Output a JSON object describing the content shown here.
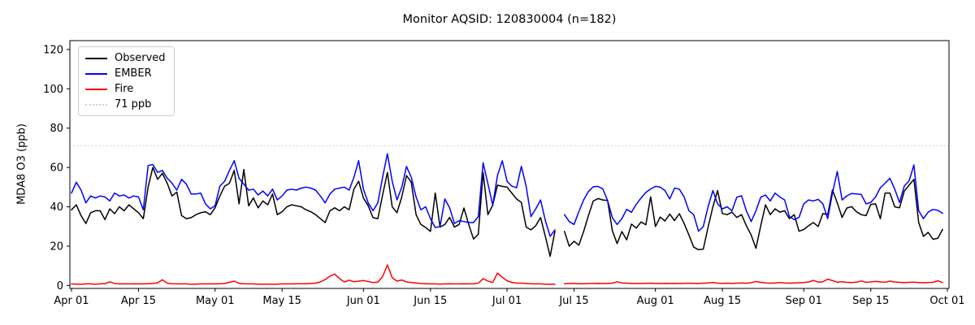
{
  "chart_data": {
    "type": "line",
    "title": "Monitor AQSID: 120830004 (n=182)",
    "xlabel": "",
    "ylabel": "MDA8 O3 (ppb)",
    "ylim": [
      -1.5,
      124.5
    ],
    "y_ticks": [
      0,
      20,
      40,
      60,
      80,
      100,
      120
    ],
    "n_days": 183,
    "x_tick_labels": [
      "Apr 01",
      "Apr 15",
      "May 01",
      "May 15",
      "Jun 01",
      "Jun 15",
      "Jul 01",
      "Jul 15",
      "Aug 01",
      "Aug 15",
      "Sep 01",
      "Sep 15",
      "Oct 01"
    ],
    "x_tick_day_index": [
      0,
      14,
      30,
      44,
      61,
      75,
      91,
      105,
      122,
      136,
      153,
      167,
      183
    ],
    "grid": false,
    "legend_position": "upper left",
    "missing_day_index": 102,
    "threshold": {
      "value": 71,
      "label": "71 ppb",
      "color": "#d3d3d3",
      "style": "dotted"
    },
    "series": [
      {
        "name": "Observed",
        "color": "#000000",
        "values": [
          38.5,
          41,
          35.5,
          31.5,
          37,
          38,
          38,
          33.5,
          39,
          36.5,
          40,
          38,
          41,
          39,
          37,
          34,
          50,
          60,
          54,
          57,
          52,
          45.5,
          47.5,
          35.5,
          34,
          34.5,
          36,
          37,
          37.5,
          36,
          39.5,
          45.5,
          50.5,
          52,
          58.5,
          41.5,
          59,
          40.5,
          44.5,
          39.5,
          43,
          41,
          46.5,
          36,
          37.5,
          40,
          41,
          40.5,
          40,
          38.5,
          37.5,
          36,
          34,
          32,
          38,
          39.5,
          38,
          40,
          38.5,
          49,
          53,
          44.5,
          40.5,
          34.5,
          34,
          46,
          57.5,
          40,
          37,
          45,
          55.9,
          52.5,
          36,
          31,
          29.5,
          27.5,
          47,
          29.7,
          31,
          34.6,
          29.7,
          31,
          39.4,
          31,
          23.6,
          26,
          57.5,
          36,
          40.8,
          51,
          50.4,
          50,
          47,
          44,
          42.2,
          29.7,
          28.3,
          30.4,
          34.6,
          25,
          14.8,
          27.6,
          null,
          27.5,
          20,
          22.5,
          20.5,
          27.4,
          35.5,
          42.9,
          44.2,
          43.5,
          43.2,
          27.8,
          21.3,
          27.4,
          23.2,
          31.2,
          29.2,
          32.3,
          30.9,
          45.1,
          30,
          34.8,
          32.8,
          36.3,
          33,
          36.5,
          31.5,
          25.7,
          19.5,
          18.2,
          18.5,
          29.7,
          40,
          48.3,
          36.6,
          36,
          37.3,
          34.6,
          36,
          30.4,
          25.7,
          18.9,
          30.4,
          41,
          36,
          39,
          37.3,
          38,
          34,
          36,
          27.6,
          28.5,
          30.4,
          32,
          30,
          36.6,
          36,
          48.6,
          42,
          34.6,
          39.4,
          40.1,
          37.5,
          36,
          35.5,
          41.2,
          41.5,
          34,
          47,
          47,
          40,
          39.5,
          48,
          51,
          54,
          32,
          25,
          27,
          23.5,
          24,
          28.5
        ]
      },
      {
        "name": "EMBER",
        "color": "#0000ff",
        "values": [
          47,
          52.5,
          48.5,
          42,
          45.5,
          44.5,
          45.5,
          45,
          43,
          47,
          45.5,
          46,
          44.5,
          45.5,
          45,
          38.5,
          61,
          61.5,
          57.5,
          58.5,
          54.5,
          52,
          48.5,
          54,
          51.5,
          46.5,
          46.5,
          47,
          41.5,
          39,
          40.5,
          50.5,
          53,
          58.5,
          63.5,
          54.5,
          51.5,
          48.5,
          49,
          46,
          48,
          45.5,
          49,
          43.5,
          45.5,
          48.5,
          49,
          48.5,
          49.5,
          50,
          49.5,
          48.5,
          45.5,
          42,
          46.5,
          49,
          49.5,
          50,
          48.5,
          55,
          63.5,
          49,
          42,
          38,
          42,
          55,
          67,
          53,
          43.5,
          50,
          60.5,
          55,
          45,
          38.5,
          40,
          34,
          29.5,
          30,
          44,
          39.5,
          31.5,
          33,
          32.5,
          32,
          32,
          35,
          62.4,
          51.8,
          40.8,
          56,
          63.4,
          53,
          50.5,
          49.7,
          60.6,
          50.4,
          35,
          39,
          43.5,
          33,
          25,
          28.3,
          null,
          36,
          32.5,
          31,
          37.5,
          43.5,
          47.8,
          50.2,
          50.4,
          49.1,
          43.2,
          34.5,
          31,
          34,
          38.7,
          37.2,
          41.3,
          44.5,
          47.3,
          49.1,
          50.4,
          50,
          48.3,
          44,
          49.5,
          49,
          45,
          38,
          36,
          27.6,
          30,
          40,
          48.3,
          41.5,
          39,
          40,
          38,
          44.9,
          45.6,
          38,
          32.5,
          38,
          44.9,
          46,
          43,
          47,
          45,
          43.5,
          35,
          33.5,
          34.6,
          41.5,
          43.5,
          43,
          43.8,
          41.5,
          34,
          47,
          58,
          43.5,
          45.6,
          46.8,
          46.5,
          46.3,
          41.5,
          42.2,
          45,
          49.7,
          52,
          54.5,
          49,
          42.2,
          50.6,
          53.2,
          61.3,
          38,
          34,
          37.3,
          38.7,
          38.2,
          36.7
        ]
      },
      {
        "name": "Fire",
        "color": "#ff0000",
        "values": [
          0.8,
          0.7,
          0.7,
          0.8,
          0.8,
          0.7,
          0.8,
          0.9,
          1.9,
          1,
          0.8,
          0.8,
          0.8,
          0.9,
          0.8,
          0.8,
          0.9,
          1,
          1.4,
          2.9,
          1.2,
          0.9,
          0.8,
          0.8,
          0.8,
          0.7,
          0.7,
          0.8,
          0.8,
          0.8,
          0.8,
          0.9,
          1,
          1.6,
          2.2,
          1.1,
          0.9,
          0.8,
          0.8,
          0.7,
          0.7,
          0.7,
          0.7,
          0.7,
          0.8,
          0.8,
          0.8,
          0.9,
          0.9,
          0.9,
          1,
          1.2,
          1.8,
          3,
          4.8,
          5.8,
          3.5,
          1.8,
          2.7,
          1.9,
          2.2,
          2.5,
          2,
          1.5,
          1.7,
          4.5,
          10.5,
          4,
          2.2,
          2.8,
          1.8,
          1.5,
          1.3,
          1,
          0.9,
          0.8,
          0.8,
          0.7,
          0.8,
          0.9,
          0.8,
          0.8,
          0.9,
          0.8,
          0.9,
          1.2,
          3.5,
          2.2,
          1.5,
          6.3,
          4.2,
          2.4,
          1.6,
          1.2,
          1.2,
          1,
          0.9,
          0.8,
          0.8,
          0.7,
          0.6,
          0.6,
          null,
          0.9,
          1,
          1,
          0.9,
          0.9,
          1,
          1,
          1.1,
          1,
          1,
          1.2,
          1.9,
          1.3,
          1.2,
          1.1,
          1,
          1,
          1.1,
          1.2,
          1,
          1,
          1.1,
          1,
          1.1,
          1,
          1.1,
          1.2,
          1.1,
          1,
          1.2,
          1.3,
          1.5,
          1.2,
          1.1,
          1.2,
          1.1,
          1.2,
          1.3,
          1.2,
          1.4,
          2,
          1.6,
          1.3,
          1.2,
          1.3,
          1.5,
          1.3,
          1.2,
          1.3,
          1.4,
          1.5,
          1.8,
          2.6,
          1.7,
          1.9,
          3.2,
          2.5,
          1.7,
          1.9,
          1.6,
          1.5,
          1.7,
          2.3,
          1.6,
          1.8,
          2.1,
          1.8,
          1.7,
          2.2,
          1.8,
          1.6,
          1.5,
          1.6,
          1.7,
          1.5,
          1.4,
          1.5,
          1.6,
          2.4,
          1.5
        ]
      }
    ]
  }
}
